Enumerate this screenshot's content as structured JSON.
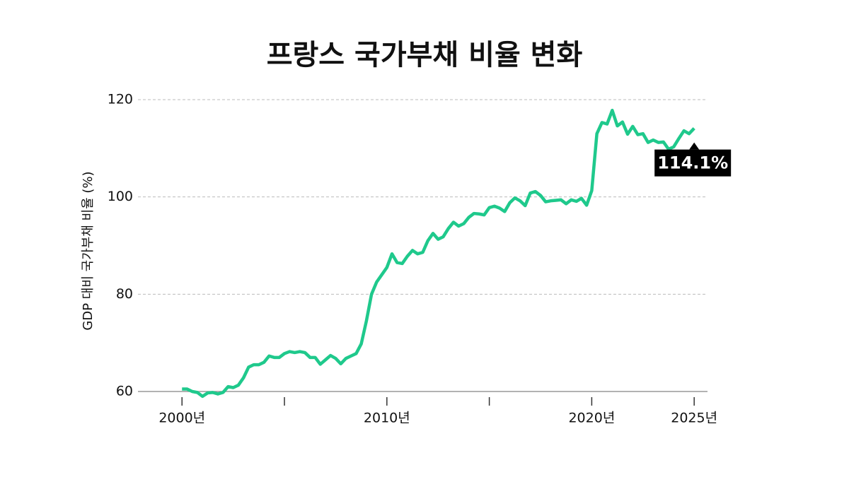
{
  "chart_data": {
    "type": "line",
    "title": "프랑스 국가부채 비율 변화",
    "y_label": "GDP 대비 국가부채 비율 (%)",
    "annotation": "114.1%",
    "x": [
      2000,
      2000.25,
      2000.5,
      2000.75,
      2001,
      2001.25,
      2001.5,
      2001.75,
      2002,
      2002.25,
      2002.5,
      2002.75,
      2003,
      2003.25,
      2003.5,
      2003.75,
      2004,
      2004.25,
      2004.5,
      2004.75,
      2005,
      2005.25,
      2005.5,
      2005.75,
      2006,
      2006.25,
      2006.5,
      2006.75,
      2007,
      2007.25,
      2007.5,
      2007.75,
      2008,
      2008.25,
      2008.5,
      2008.75,
      2009,
      2009.25,
      2009.5,
      2009.75,
      2010,
      2010.25,
      2010.5,
      2010.75,
      2011,
      2011.25,
      2011.5,
      2011.75,
      2012,
      2012.25,
      2012.5,
      2012.75,
      2013,
      2013.25,
      2013.5,
      2013.75,
      2014,
      2014.25,
      2014.5,
      2014.75,
      2015,
      2015.25,
      2015.5,
      2015.75,
      2016,
      2016.25,
      2016.5,
      2016.75,
      2017,
      2017.25,
      2017.5,
      2017.75,
      2018,
      2018.25,
      2018.5,
      2018.75,
      2019,
      2019.25,
      2019.5,
      2019.75,
      2020,
      2020.25,
      2020.5,
      2020.75,
      2021,
      2021.25,
      2021.5,
      2021.75,
      2022,
      2022.25,
      2022.5,
      2022.75,
      2023,
      2023.25,
      2023.5,
      2023.75,
      2024,
      2024.25,
      2024.5,
      2024.75,
      2025
    ],
    "series": [
      {
        "name": "France",
        "color": "#1fc98c",
        "values": [
          60.5,
          60.5,
          60,
          59.8,
          59,
          59.7,
          59.8,
          59.5,
          59.8,
          61,
          60.8,
          61.3,
          62.8,
          65,
          65.5,
          65.5,
          66,
          67.3,
          67,
          67,
          67.8,
          68.2,
          68,
          68.2,
          68,
          67,
          67,
          65.6,
          66.5,
          67.4,
          66.8,
          65.7,
          66.8,
          67.3,
          67.8,
          69.8,
          74.5,
          80,
          82.5,
          84,
          85.5,
          88.3,
          86.5,
          86.3,
          87.8,
          89,
          88.3,
          88.6,
          91,
          92.5,
          91.3,
          91.8,
          93.5,
          94.8,
          94,
          94.5,
          95.8,
          96.6,
          96.5,
          96.3,
          97.8,
          98.1,
          97.7,
          97,
          98.8,
          99.8,
          99.2,
          98.2,
          100.8,
          101.1,
          100.3,
          99,
          99.2,
          99.3,
          99.4,
          98.6,
          99.4,
          99.1,
          99.7,
          98.3,
          101.3,
          113,
          115.3,
          115,
          117.8,
          114.6,
          115.4,
          112.9,
          114.5,
          112.8,
          113,
          111.2,
          111.7,
          111.2,
          111.3,
          109.8,
          110.3,
          112,
          113.6,
          113,
          114.1
        ]
      }
    ],
    "xlim": [
      1997.85,
      2025.65
    ],
    "xticks": [
      {
        "value": 2000,
        "label": "2000년"
      },
      {
        "value": 2010,
        "label": "2010년"
      },
      {
        "value": 2020,
        "label": "2020년"
      },
      {
        "value": 2025,
        "label": "2025년"
      }
    ],
    "xminor_ticks": [
      2005,
      2015
    ],
    "ylim": [
      60,
      120
    ],
    "yticks": [
      60,
      80,
      100,
      120
    ],
    "grid": true
  }
}
